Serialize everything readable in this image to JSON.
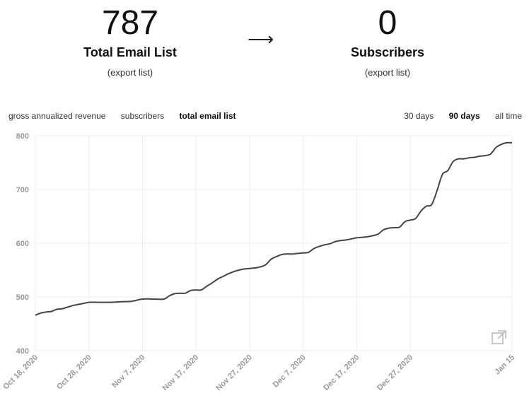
{
  "stats": {
    "left": {
      "value": "787",
      "label": "Total Email List",
      "link": "(export list)"
    },
    "arrow": "⟶",
    "right": {
      "value": "0",
      "label": "Subscribers",
      "link": "(export list)"
    }
  },
  "metric_tabs": [
    {
      "label": "gross annualized revenue",
      "active": false
    },
    {
      "label": "subscribers",
      "active": false
    },
    {
      "label": "total email list",
      "active": true
    }
  ],
  "range_tabs": [
    {
      "label": "30 days",
      "active": false
    },
    {
      "label": "90 days",
      "active": true
    },
    {
      "label": "all time",
      "active": false
    }
  ],
  "external_icon": "external-link-icon",
  "colors": {
    "line": "#444444",
    "grid": "#eeeeee",
    "tick": "#999999"
  },
  "chart_data": {
    "type": "line",
    "title": "",
    "xlabel": "",
    "ylabel": "",
    "ylim": [
      400,
      800
    ],
    "yticks": [
      400,
      500,
      600,
      700,
      800
    ],
    "xlim": [
      "2020-10-18",
      "2021-01-15"
    ],
    "xtick_labels": [
      "Oct 18, 2020",
      "Oct 28, 2020",
      "Nov 7, 2020",
      "Nov 17, 2020",
      "Nov 27, 2020",
      "Dec 7, 2020",
      "Dec 17, 2020",
      "Dec 27, 2020",
      "Jan 15"
    ],
    "xtick_dates": [
      "2020-10-18",
      "2020-10-28",
      "2020-11-07",
      "2020-11-17",
      "2020-11-27",
      "2020-12-07",
      "2020-12-17",
      "2020-12-27",
      "2021-01-15"
    ],
    "grid": true,
    "series": [
      {
        "x": [
          "2020-10-18",
          "2020-10-19",
          "2020-10-20",
          "2020-10-21",
          "2020-10-22",
          "2020-10-23",
          "2020-10-24",
          "2020-10-25",
          "2020-10-26",
          "2020-10-27",
          "2020-10-28",
          "2020-10-30",
          "2020-11-01",
          "2020-11-03",
          "2020-11-05",
          "2020-11-07",
          "2020-11-09",
          "2020-11-11",
          "2020-11-12",
          "2020-11-13",
          "2020-11-14",
          "2020-11-15",
          "2020-11-16",
          "2020-11-17",
          "2020-11-18",
          "2020-11-19",
          "2020-11-20",
          "2020-11-21",
          "2020-11-22",
          "2020-11-23",
          "2020-11-24",
          "2020-11-25",
          "2020-11-26",
          "2020-11-27",
          "2020-11-28",
          "2020-11-29",
          "2020-11-30",
          "2020-12-01",
          "2020-12-02",
          "2020-12-03",
          "2020-12-04",
          "2020-12-05",
          "2020-12-06",
          "2020-12-07",
          "2020-12-08",
          "2020-12-09",
          "2020-12-10",
          "2020-12-11",
          "2020-12-12",
          "2020-12-13",
          "2020-12-14",
          "2020-12-15",
          "2020-12-16",
          "2020-12-17",
          "2020-12-18",
          "2020-12-19",
          "2020-12-20",
          "2020-12-21",
          "2020-12-22",
          "2020-12-23",
          "2020-12-24",
          "2020-12-25",
          "2020-12-26",
          "2020-12-27",
          "2020-12-28",
          "2020-12-29",
          "2020-12-30",
          "2020-12-31",
          "2021-01-01",
          "2021-01-02",
          "2021-01-03",
          "2021-01-04",
          "2021-01-05",
          "2021-01-06",
          "2021-01-07",
          "2021-01-08",
          "2021-01-09",
          "2021-01-10",
          "2021-01-11",
          "2021-01-12",
          "2021-01-13",
          "2021-01-14",
          "2021-01-15"
        ],
        "y": [
          466,
          470,
          472,
          473,
          477,
          478,
          481,
          484,
          486,
          488,
          490,
          490,
          490,
          491,
          492,
          496,
          496,
          496,
          502,
          506,
          507,
          507,
          512,
          513,
          513,
          520,
          526,
          533,
          538,
          543,
          547,
          550,
          552,
          553,
          554,
          556,
          560,
          570,
          575,
          579,
          580,
          580,
          581,
          582,
          583,
          590,
          594,
          597,
          599,
          603,
          605,
          606,
          608,
          610,
          611,
          612,
          614,
          617,
          625,
          628,
          629,
          630,
          640,
          643,
          646,
          660,
          669,
          672,
          698,
          728,
          735,
          752,
          757,
          757,
          759,
          760,
          762,
          763,
          766,
          778,
          784,
          787,
          787
        ]
      }
    ]
  }
}
